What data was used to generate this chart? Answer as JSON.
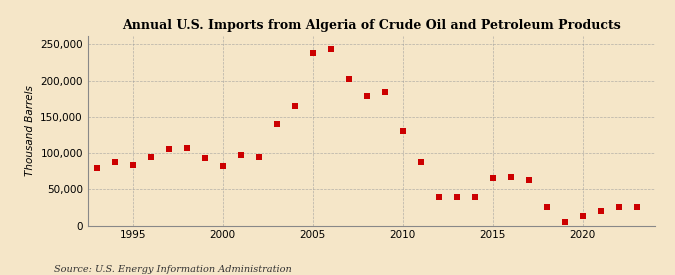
{
  "title": "Annual U.S. Imports from Algeria of Crude Oil and Petroleum Products",
  "ylabel": "Thousand Barrels",
  "source": "Source: U.S. Energy Information Administration",
  "background_color": "#f5e6c8",
  "plot_background_color": "#f5e6c8",
  "grid_color": "#999999",
  "dot_color": "#cc0000",
  "years": [
    1993,
    1994,
    1995,
    1996,
    1997,
    1998,
    1999,
    2000,
    2001,
    2002,
    2003,
    2004,
    2005,
    2006,
    2007,
    2008,
    2009,
    2010,
    2011,
    2012,
    2013,
    2014,
    2015,
    2016,
    2017,
    2018,
    2019,
    2020,
    2021,
    2022,
    2023
  ],
  "values": [
    80000,
    88000,
    84000,
    95000,
    105000,
    107000,
    93000,
    82000,
    97000,
    95000,
    140000,
    165000,
    238000,
    244000,
    202000,
    179000,
    185000,
    130000,
    88000,
    40000,
    40000,
    40000,
    65000,
    67000,
    63000,
    25000,
    5000,
    13000,
    20000,
    25000,
    25000
  ],
  "ylim": [
    0,
    262000
  ],
  "yticks": [
    0,
    50000,
    100000,
    150000,
    200000,
    250000
  ],
  "xlim": [
    1992.5,
    2024
  ],
  "xticks": [
    1995,
    2000,
    2005,
    2010,
    2015,
    2020
  ]
}
